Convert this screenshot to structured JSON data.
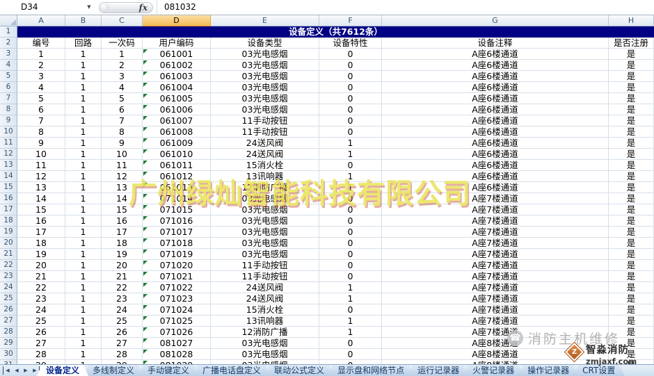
{
  "formula_bar": {
    "name_box": "D34",
    "fx_label": "fx",
    "formula_value": "081032"
  },
  "columns": [
    "A",
    "B",
    "C",
    "D",
    "E",
    "F",
    "G",
    "H"
  ],
  "selected_column": "D",
  "title_row": {
    "row": "1",
    "text": "设备定义（共7612条）"
  },
  "header_row": {
    "row": "2",
    "cells": [
      "编号",
      "回路",
      "一次码",
      "用户编码",
      "设备类型",
      "设备特性",
      "设备注释",
      "是否注册"
    ]
  },
  "first_data_sheet_row": 3,
  "rows": [
    {
      "num": "1",
      "loop": "1",
      "code": "1",
      "user_code": "061001",
      "type": "03光电感烟",
      "feature": "0",
      "note": "A座6楼通道",
      "registered": "是"
    },
    {
      "num": "2",
      "loop": "1",
      "code": "2",
      "user_code": "061002",
      "type": "03光电感烟",
      "feature": "0",
      "note": "A座6楼通道",
      "registered": "是"
    },
    {
      "num": "3",
      "loop": "1",
      "code": "3",
      "user_code": "061003",
      "type": "03光电感烟",
      "feature": "0",
      "note": "A座6楼通道",
      "registered": "是"
    },
    {
      "num": "4",
      "loop": "1",
      "code": "4",
      "user_code": "061004",
      "type": "03光电感烟",
      "feature": "0",
      "note": "A座6楼通道",
      "registered": "是"
    },
    {
      "num": "5",
      "loop": "1",
      "code": "5",
      "user_code": "061005",
      "type": "03光电感烟",
      "feature": "0",
      "note": "A座6楼通道",
      "registered": "是"
    },
    {
      "num": "6",
      "loop": "1",
      "code": "6",
      "user_code": "061006",
      "type": "03光电感烟",
      "feature": "0",
      "note": "A座6楼通道",
      "registered": "是"
    },
    {
      "num": "7",
      "loop": "1",
      "code": "7",
      "user_code": "061007",
      "type": "11手动按钮",
      "feature": "0",
      "note": "A座6楼通道",
      "registered": "是"
    },
    {
      "num": "8",
      "loop": "1",
      "code": "8",
      "user_code": "061008",
      "type": "11手动按钮",
      "feature": "0",
      "note": "A座6楼通道",
      "registered": "是"
    },
    {
      "num": "9",
      "loop": "1",
      "code": "9",
      "user_code": "061009",
      "type": "24送风阀",
      "feature": "1",
      "note": "A座6楼通道",
      "registered": "是"
    },
    {
      "num": "10",
      "loop": "1",
      "code": "10",
      "user_code": "061010",
      "type": "24送风阀",
      "feature": "1",
      "note": "A座6楼通道",
      "registered": "是"
    },
    {
      "num": "11",
      "loop": "1",
      "code": "11",
      "user_code": "061011",
      "type": "15消火栓",
      "feature": "0",
      "note": "A座6楼通道",
      "registered": "是"
    },
    {
      "num": "12",
      "loop": "1",
      "code": "12",
      "user_code": "061012",
      "type": "13讯响器",
      "feature": "1",
      "note": "A座6楼通道",
      "registered": "是"
    },
    {
      "num": "13",
      "loop": "1",
      "code": "13",
      "user_code": "061013",
      "type": "12消防广播",
      "feature": "1",
      "note": "A座6楼通道",
      "registered": "是"
    },
    {
      "num": "14",
      "loop": "1",
      "code": "14",
      "user_code": "071014",
      "type": "03光电感烟",
      "feature": "0",
      "note": "A座7楼通道",
      "registered": "是"
    },
    {
      "num": "15",
      "loop": "1",
      "code": "15",
      "user_code": "071015",
      "type": "03光电感烟",
      "feature": "0",
      "note": "A座7楼通道",
      "registered": "是"
    },
    {
      "num": "16",
      "loop": "1",
      "code": "16",
      "user_code": "071016",
      "type": "03光电感烟",
      "feature": "0",
      "note": "A座7楼通道",
      "registered": "是"
    },
    {
      "num": "17",
      "loop": "1",
      "code": "17",
      "user_code": "071017",
      "type": "03光电感烟",
      "feature": "0",
      "note": "A座7楼通道",
      "registered": "是"
    },
    {
      "num": "18",
      "loop": "1",
      "code": "18",
      "user_code": "071018",
      "type": "03光电感烟",
      "feature": "0",
      "note": "A座7楼通道",
      "registered": "是"
    },
    {
      "num": "19",
      "loop": "1",
      "code": "19",
      "user_code": "071019",
      "type": "03光电感烟",
      "feature": "0",
      "note": "A座7楼通道",
      "registered": "是"
    },
    {
      "num": "20",
      "loop": "1",
      "code": "20",
      "user_code": "071020",
      "type": "11手动按钮",
      "feature": "0",
      "note": "A座7楼通道",
      "registered": "是"
    },
    {
      "num": "21",
      "loop": "1",
      "code": "21",
      "user_code": "071021",
      "type": "11手动按钮",
      "feature": "0",
      "note": "A座7楼通道",
      "registered": "是"
    },
    {
      "num": "22",
      "loop": "1",
      "code": "22",
      "user_code": "071022",
      "type": "24送风阀",
      "feature": "1",
      "note": "A座7楼通道",
      "registered": "是"
    },
    {
      "num": "23",
      "loop": "1",
      "code": "23",
      "user_code": "071023",
      "type": "24送风阀",
      "feature": "1",
      "note": "A座7楼通道",
      "registered": "是"
    },
    {
      "num": "24",
      "loop": "1",
      "code": "24",
      "user_code": "071024",
      "type": "15消火栓",
      "feature": "0",
      "note": "A座7楼通道",
      "registered": "是"
    },
    {
      "num": "25",
      "loop": "1",
      "code": "25",
      "user_code": "071025",
      "type": "13讯响器",
      "feature": "1",
      "note": "A座7楼通道",
      "registered": "是"
    },
    {
      "num": "26",
      "loop": "1",
      "code": "26",
      "user_code": "071026",
      "type": "12消防广播",
      "feature": "1",
      "note": "A座7楼通道",
      "registered": "是"
    },
    {
      "num": "27",
      "loop": "1",
      "code": "27",
      "user_code": "081027",
      "type": "03光电感烟",
      "feature": "0",
      "note": "A座8楼通道",
      "registered": "是"
    },
    {
      "num": "28",
      "loop": "1",
      "code": "28",
      "user_code": "081028",
      "type": "03光电感烟",
      "feature": "0",
      "note": "A座8楼通道",
      "registered": "是"
    },
    {
      "num": "29",
      "loop": "1",
      "code": "29",
      "user_code": "081029",
      "type": "03光电感烟",
      "feature": "0",
      "note": "A座8楼通道",
      "registered": "是"
    }
  ],
  "watermark": {
    "text": "广州绿灿智能科技有限公司",
    "color": "#e9e455"
  },
  "corner_logo": {
    "phone_icon": "☎",
    "phone_text": "消防主机维修",
    "diamond_glyph": "Z",
    "brand": "智淼消防",
    "site": "zmjaxf.com",
    "accent_color": "#c9702e"
  },
  "sheet_tabs": {
    "active": "设备定义",
    "nav_icons": [
      {
        "name": "first-sheet",
        "glyph": "◀"
      },
      {
        "name": "prev-sheet",
        "glyph": "◀"
      },
      {
        "name": "next-sheet",
        "glyph": "▶"
      },
      {
        "name": "last-sheet",
        "glyph": "▶"
      }
    ],
    "tabs": [
      "设备定义",
      "多线制定义",
      "手动键定义",
      "广播电话盘定义",
      "联动公式定义",
      "显示盘和网络节点",
      "运行记录器",
      "火警记录器",
      "操作记录器",
      "CRT设置"
    ]
  },
  "colors": {
    "title_bar": "#020083",
    "selected_column_header": "#f5ba58",
    "grid_line": "#d7dfe9"
  }
}
